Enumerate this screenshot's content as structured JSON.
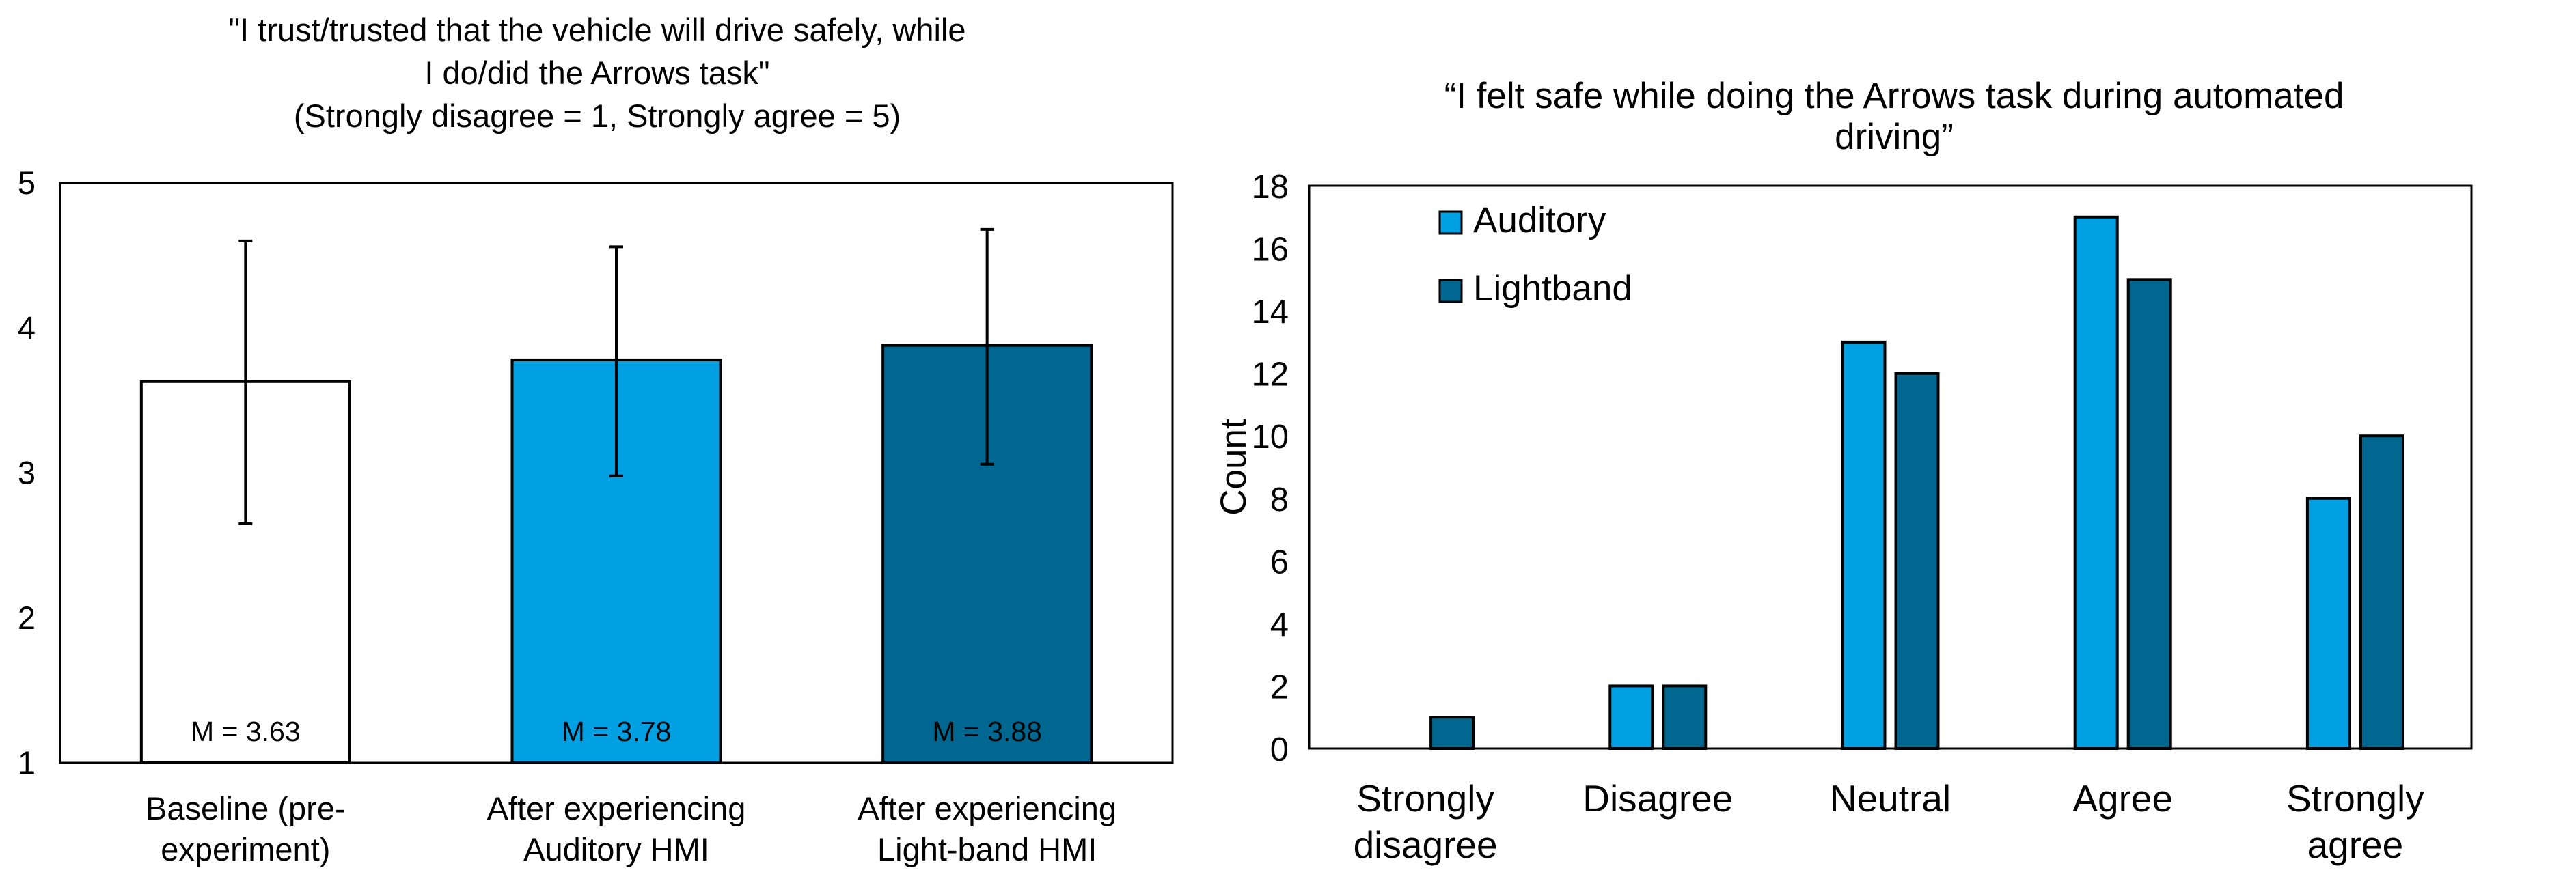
{
  "colors": {
    "baseline": "#ffffff",
    "auditory": "#00a0e3",
    "lightband": "#006890",
    "stroke": "#000000"
  },
  "chart_data": [
    {
      "type": "bar",
      "title_lines": [
        "\"I trust/trusted that the vehicle will drive safely, while",
        "I do/did the Arrows task\"",
        "(Strongly disagree = 1, Strongly agree = 5)"
      ],
      "categories": [
        [
          "Baseline (pre-",
          "experiment)"
        ],
        [
          "After experiencing",
          "Auditory HMI"
        ],
        [
          "After experiencing",
          "Light-band HMI"
        ]
      ],
      "values": [
        3.63,
        3.78,
        3.88
      ],
      "error_upper": [
        4.6,
        4.56,
        4.68
      ],
      "error_lower": [
        2.65,
        2.98,
        3.06
      ],
      "data_labels": [
        "M = 3.63",
        "M = 3.78",
        "M = 3.88"
      ],
      "bar_colors": [
        "baseline",
        "auditory",
        "lightband"
      ],
      "ylim": [
        1,
        5
      ],
      "yticks": [
        "1",
        "2",
        "3",
        "4",
        "5"
      ],
      "xlabel": "",
      "ylabel": "",
      "grid": false
    },
    {
      "type": "bar",
      "title_lines": [
        "“I felt safe while doing the Arrows task during automated",
        "driving”"
      ],
      "categories": [
        [
          "Strongly",
          "disagree"
        ],
        [
          "Disagree"
        ],
        [
          "Neutral"
        ],
        [
          "Agree"
        ],
        [
          "Strongly",
          "agree"
        ]
      ],
      "series": [
        {
          "name": "Auditory",
          "color": "auditory",
          "values": [
            0,
            2,
            13,
            17,
            8
          ]
        },
        {
          "name": "Lightband",
          "color": "lightband",
          "values": [
            1,
            2,
            12,
            15,
            10
          ]
        }
      ],
      "ylim": [
        0,
        18
      ],
      "yticks": [
        "0",
        "2",
        "4",
        "6",
        "8",
        "10",
        "12",
        "14",
        "16",
        "18"
      ],
      "xlabel": "",
      "ylabel": "Count",
      "legend_position": "top-left",
      "grid": false
    }
  ]
}
